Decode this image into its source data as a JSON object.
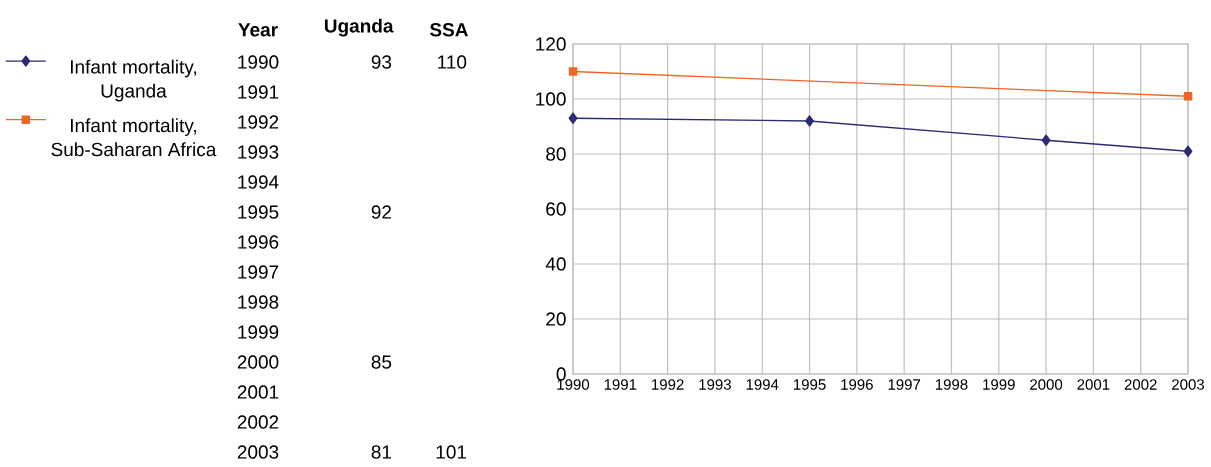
{
  "chart_data": [
    {
      "type": "heatmap",
      "ylabel": "Year",
      "categories": [
        "Uganda",
        "SSA"
      ],
      "y_categories": [
        "1990",
        "1991",
        "1992",
        "1993",
        "1994",
        "1995",
        "1996",
        "1997",
        "1998",
        "1999",
        "2000",
        "2001",
        "2002",
        "2003"
      ],
      "data_labels": true,
      "cells": [
        [
          93,
          110
        ],
        [
          null,
          null
        ],
        [
          null,
          null
        ],
        [
          null,
          null
        ],
        [
          null,
          null
        ],
        [
          92,
          null
        ],
        [
          null,
          null
        ],
        [
          null,
          null
        ],
        [
          null,
          null
        ],
        [
          null,
          null
        ],
        [
          85,
          null
        ],
        [
          null,
          null
        ],
        [
          null,
          null
        ],
        [
          81,
          101
        ]
      ]
    },
    {
      "type": "line",
      "xlim": [
        1990,
        2003
      ],
      "xticks": [
        1990,
        1991,
        1992,
        1993,
        1994,
        1995,
        1996,
        1997,
        1998,
        1999,
        2000,
        2001,
        2002,
        2003
      ],
      "ylim": [
        0,
        120
      ],
      "yticks": [
        0,
        20,
        40,
        60,
        80,
        100,
        120
      ],
      "grid": true,
      "legend": "left",
      "series": [
        {
          "name": "Infant mortality, Uganda",
          "color": "#2b2a72",
          "marker": "diamond",
          "x": [
            1990,
            1995,
            2000,
            2003
          ],
          "values": [
            93,
            92,
            85,
            81
          ]
        },
        {
          "name": "Infant mortality, Sub-Saharan Africa",
          "color": "#f26522",
          "marker": "square",
          "x": [
            1990,
            2003
          ],
          "values": [
            110,
            101
          ]
        }
      ]
    }
  ]
}
